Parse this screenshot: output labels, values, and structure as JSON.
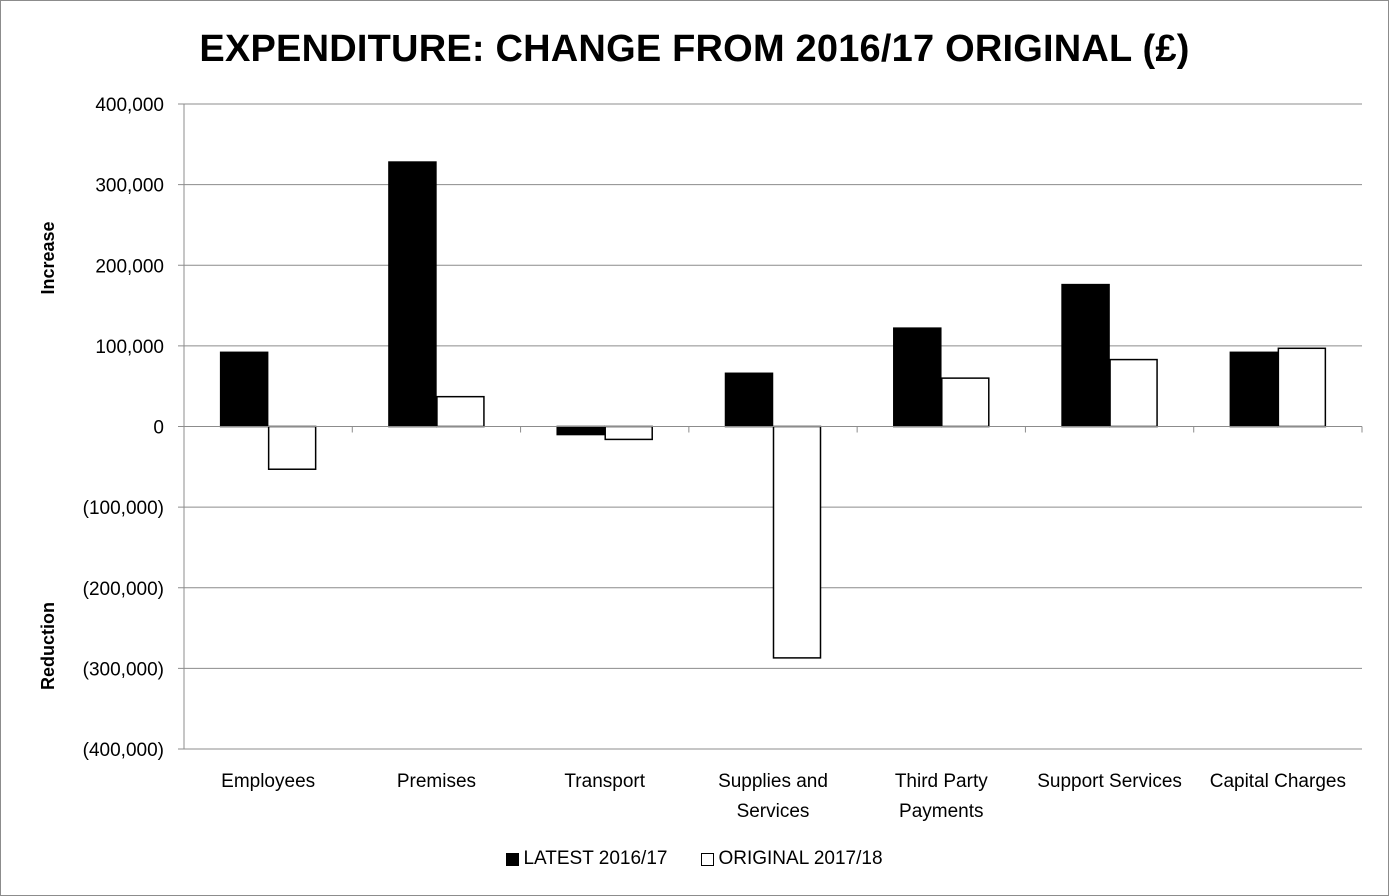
{
  "chart_data": {
    "type": "bar",
    "title": "EXPENDITURE: CHANGE FROM 2016/17 ORIGINAL (£)",
    "categories": [
      [
        "Employees"
      ],
      [
        "Premises"
      ],
      [
        "Transport"
      ],
      [
        "Supplies and",
        "Services"
      ],
      [
        "Third Party",
        "Payments"
      ],
      [
        "Support Services"
      ],
      [
        "Capital Charges"
      ]
    ],
    "series": [
      {
        "name": "LATEST 2016/17",
        "color": "#000000",
        "values": [
          92000,
          328000,
          -10000,
          66000,
          122000,
          176000,
          92000
        ]
      },
      {
        "name": "ORIGINAL 2017/18",
        "color": "#ffffff",
        "values": [
          -53000,
          37000,
          -16000,
          -287000,
          60000,
          83000,
          97000
        ]
      }
    ],
    "ylim": [
      -400000,
      400000
    ],
    "yticks": [
      400000,
      300000,
      200000,
      100000,
      0,
      -100000,
      -200000,
      -300000,
      -400000
    ],
    "ytick_labels": [
      "400,000",
      "300,000",
      "200,000",
      "100,000",
      "0",
      "(100,000)",
      "(200,000)",
      "(300,000)",
      "(400,000)"
    ],
    "ylabel_top": "Increase",
    "ylabel_bottom": "Reduction",
    "xlabel": "",
    "grid": true,
    "legend_position": "bottom"
  }
}
